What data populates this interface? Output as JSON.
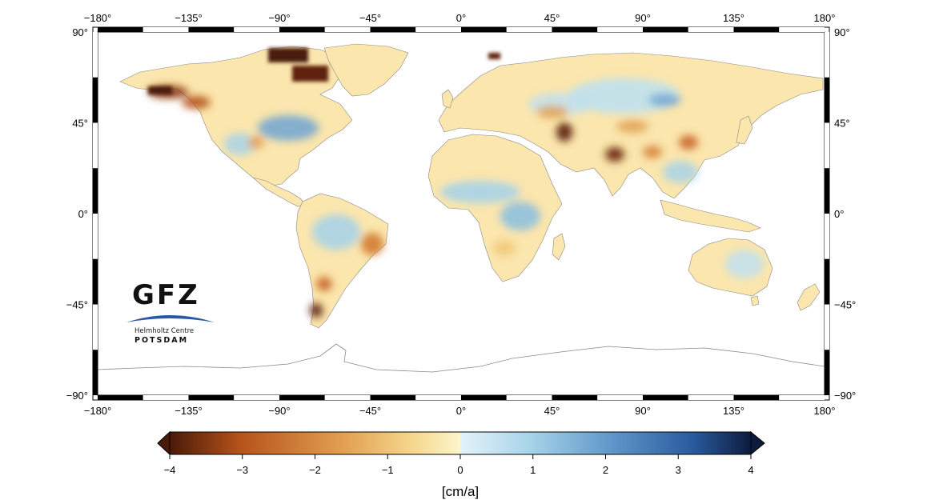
{
  "map": {
    "lon_ticks": [
      "−180°",
      "−135°",
      "−90°",
      "−45°",
      "0°",
      "45°",
      "90°",
      "135°",
      "180°"
    ],
    "lat_ticks": [
      "90°",
      "45°",
      "0°",
      "−45°",
      "−90°"
    ],
    "lon_range": [
      -180,
      180
    ],
    "lat_range": [
      -90,
      90
    ],
    "projection": "equirectangular"
  },
  "logo": {
    "name": "GFZ",
    "subtitle": "Helmholtz Centre",
    "city": "POTSDAM",
    "arc_color": "#2b57a6"
  },
  "colorbar": {
    "ticks": [
      "−4",
      "−3",
      "−2",
      "−1",
      "0",
      "1",
      "2",
      "3",
      "4"
    ],
    "range": [
      -4,
      4
    ],
    "unit": "[cm/a]",
    "negative_colors": [
      "#4a1a08",
      "#b5521a",
      "#e2a052",
      "#f5d88e",
      "#fdf5cc"
    ],
    "positive_colors": [
      "#e3f3fa",
      "#a8d3e8",
      "#5e97c9",
      "#2a5a9e",
      "#0d1b3e"
    ]
  }
}
